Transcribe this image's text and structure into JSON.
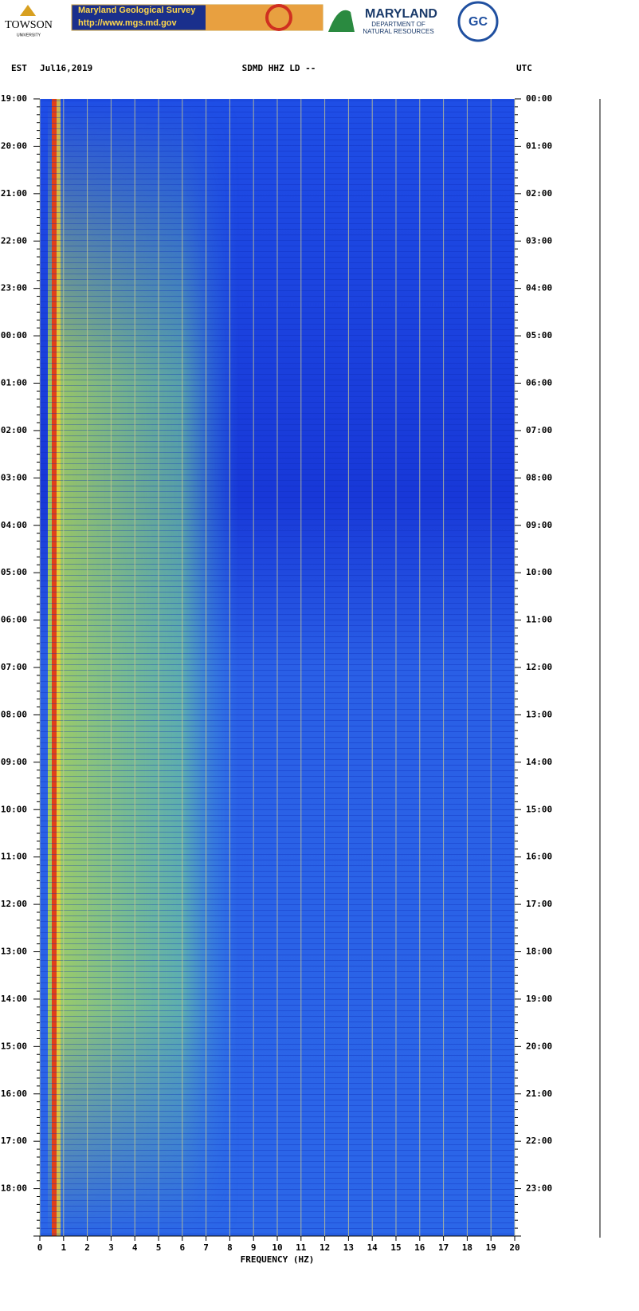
{
  "header": {
    "towson": "TOWSON",
    "towson_sub": "UNIVERSITY",
    "mgs_title": "Maryland Geological Survey",
    "mgs_url": "http://www.mgs.md.gov",
    "dnr_title": "MARYLAND",
    "dnr_line1": "DEPARTMENT OF",
    "dnr_line2": "NATURAL RESOURCES",
    "gc": "GC"
  },
  "chart_data": {
    "type": "spectrogram",
    "left_label": "EST",
    "date": "Jul16,2019",
    "title": "SDMD HHZ LD --",
    "right_label": "UTC",
    "x_label": "FREQUENCY (HZ)",
    "xlim": [
      0,
      20
    ],
    "xticks": [
      0,
      1,
      2,
      3,
      4,
      5,
      6,
      7,
      8,
      9,
      10,
      11,
      12,
      13,
      14,
      15,
      16,
      17,
      18,
      19,
      20
    ],
    "grid": true,
    "left_times": [
      "19:00",
      "20:00",
      "21:00",
      "22:00",
      "23:00",
      "00:00",
      "01:00",
      "02:00",
      "03:00",
      "04:00",
      "05:00",
      "06:00",
      "07:00",
      "08:00",
      "09:00",
      "10:00",
      "11:00",
      "12:00",
      "13:00",
      "14:00",
      "15:00",
      "16:00",
      "17:00",
      "18:00"
    ],
    "right_times": [
      "00:00",
      "01:00",
      "02:00",
      "03:00",
      "04:00",
      "05:00",
      "06:00",
      "07:00",
      "08:00",
      "09:00",
      "10:00",
      "11:00",
      "12:00",
      "13:00",
      "14:00",
      "15:00",
      "16:00",
      "17:00",
      "18:00",
      "19:00",
      "20:00",
      "21:00",
      "22:00",
      "23:00"
    ]
  }
}
